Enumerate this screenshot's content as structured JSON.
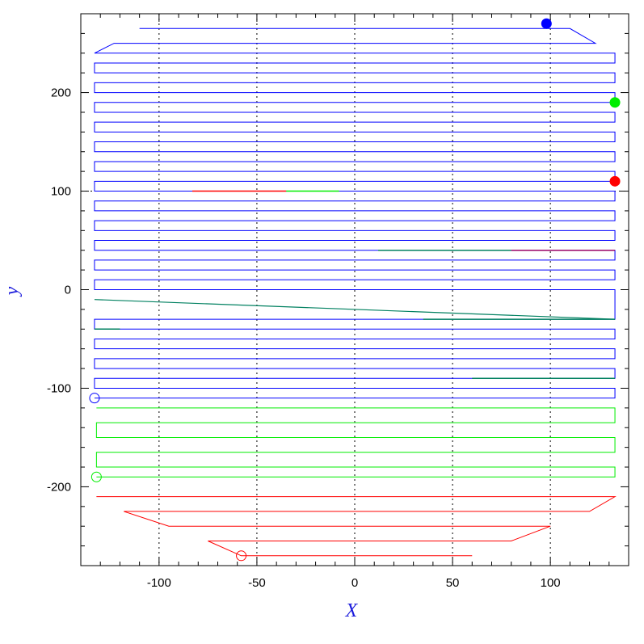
{
  "chart_data": {
    "type": "line",
    "title": "",
    "xlabel": "X",
    "ylabel": "y",
    "xlim": [
      -140,
      140
    ],
    "ylim": [
      -280,
      280
    ],
    "x_ticks": [
      -100,
      -50,
      0,
      50,
      100
    ],
    "y_ticks": [
      -200,
      -100,
      0,
      100,
      200
    ],
    "x_tick_labels": [
      "-100",
      "-50",
      "0",
      "50",
      "100"
    ],
    "y_tick_labels": [
      "-200",
      "-100",
      "0",
      "100",
      "200"
    ],
    "grid": "dotted lines at x = -100, -50, 0, 50, 100 and y = 100",
    "colors": {
      "blue": "#0000ff",
      "green": "#00ee00",
      "red": "#ff0000",
      "teal": "#008060",
      "grid": "#000000"
    },
    "rows": {
      "y_start": 265,
      "y_step": -10,
      "x_left": -133,
      "x_right": 133
    },
    "series": [
      {
        "color": "#0000ff",
        "note_rows": "serpentine scan rows from y=265 down to y=-110",
        "row_y": [
          265,
          250,
          240,
          230,
          220,
          210,
          200,
          190,
          180,
          170,
          160,
          150,
          140,
          130,
          120,
          110,
          100,
          90,
          80,
          70,
          60,
          50,
          40,
          30,
          20,
          10,
          0,
          -30,
          -40,
          -50,
          -60,
          -70,
          -80,
          -90,
          -100,
          -110
        ],
        "row_x_left": [
          -110,
          -123,
          -133,
          -133,
          -133,
          -133,
          -133,
          -133,
          -133,
          -133,
          -133,
          -133,
          -133,
          -133,
          -133,
          -133,
          -133,
          -133,
          -133,
          -133,
          -133,
          -133,
          -133,
          -133,
          -133,
          -133,
          -133,
          -133,
          -133,
          -133,
          -133,
          -133,
          -133,
          -133,
          -133,
          -133
        ],
        "row_x_right": [
          110,
          123,
          133,
          133,
          133,
          133,
          133,
          133,
          133,
          133,
          133,
          133,
          133,
          133,
          133,
          133,
          133,
          133,
          133,
          133,
          133,
          133,
          133,
          133,
          133,
          133,
          133,
          133,
          133,
          133,
          133,
          133,
          133,
          133,
          133,
          133
        ],
        "start_marker": {
          "x": 98,
          "y": 270,
          "filled": true
        },
        "end_marker": {
          "x": -133,
          "y": -110,
          "filled": false
        }
      },
      {
        "color": "#00ee00",
        "row_y": [
          -120,
          -135,
          -150,
          -165,
          -180,
          -190
        ],
        "row_x_left": [
          -132,
          -132,
          -132,
          -132,
          -132,
          -132
        ],
        "row_x_right": [
          133,
          133,
          133,
          133,
          133,
          133
        ],
        "start_marker": {
          "x": 133,
          "y": 190,
          "filled": true
        },
        "end_marker": {
          "x": -132,
          "y": -190,
          "filled": false
        }
      },
      {
        "color": "#ff0000",
        "row_y": [
          -210,
          -225,
          -240,
          -255,
          -270
        ],
        "row_x_left": [
          -132,
          -118,
          -95,
          -75,
          -58
        ],
        "row_x_right": [
          133,
          120,
          100,
          80,
          60
        ],
        "start_marker": {
          "x": 133,
          "y": 110,
          "filled": true
        },
        "end_marker": {
          "x": -58,
          "y": -270,
          "filled": false
        }
      }
    ],
    "diagonal_segment": {
      "x1": -133,
      "y1": -10,
      "x2": 133,
      "y2": -30,
      "color": "#008060"
    },
    "overlay_segments": [
      {
        "x1": -83,
        "y1": 100,
        "x2": -35,
        "y2": 100,
        "color": "#ff0000"
      },
      {
        "x1": -35,
        "y1": 100,
        "x2": -8,
        "y2": 100,
        "color": "#00ee00"
      },
      {
        "x1": 12,
        "y1": 40,
        "x2": 80,
        "y2": 40,
        "color": "#008060"
      },
      {
        "x1": 80,
        "y1": 40,
        "x2": 133,
        "y2": 40,
        "color": "#990066"
      },
      {
        "x1": 60,
        "y1": -90,
        "x2": 133,
        "y2": -90,
        "color": "#008060"
      },
      {
        "x1": 35,
        "y1": -30,
        "x2": 133,
        "y2": -30,
        "color": "#008060"
      },
      {
        "x1": -133,
        "y1": -40,
        "x2": -120,
        "y2": -40,
        "color": "#008060"
      }
    ]
  }
}
